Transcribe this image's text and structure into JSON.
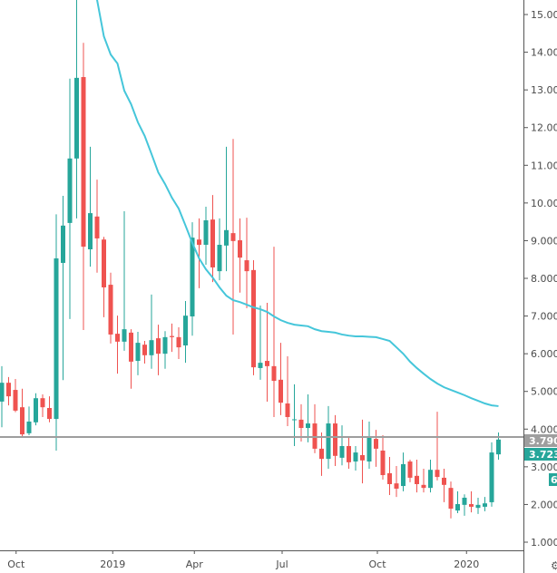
{
  "chart_data": {
    "type": "candlestick",
    "title": "",
    "xlabel": "",
    "ylabel": "",
    "ylim": [
      0.8,
      15.4
    ],
    "grid": false,
    "colors": {
      "up": "#26a69a",
      "down": "#ef5350",
      "ma": "#45c6da",
      "price_line": "#9e9e9e"
    },
    "y_ticks": [
      "1.000",
      "2.000",
      "3.000",
      "4.000",
      "5.000",
      "6.000",
      "7.000",
      "8.000",
      "9.000",
      "10.000",
      "11.000",
      "12.000",
      "13.000",
      "14.000",
      "15.000"
    ],
    "x_ticks": [
      {
        "label": "Oct",
        "at_candle": 2.1
      },
      {
        "label": "2019",
        "at_candle": 16.3
      },
      {
        "label": "Apr",
        "at_candle": 28.3
      },
      {
        "label": "Jul",
        "at_candle": 41.2
      },
      {
        "label": "Oct",
        "at_candle": 55.2
      },
      {
        "label": "2020",
        "at_candle": 68.3
      }
    ],
    "candles_ohlc": [
      [
        4.73,
        5.67,
        4.05,
        5.23
      ],
      [
        5.23,
        5.38,
        4.63,
        4.87
      ],
      [
        5.04,
        5.33,
        4.45,
        4.49
      ],
      [
        4.58,
        5.07,
        3.8,
        3.86
      ],
      [
        3.89,
        4.6,
        3.84,
        4.2
      ],
      [
        4.18,
        4.95,
        4.1,
        4.82
      ],
      [
        4.82,
        4.92,
        4.32,
        4.58
      ],
      [
        4.56,
        4.87,
        4.18,
        4.27
      ],
      [
        4.27,
        9.7,
        3.43,
        8.53
      ],
      [
        8.41,
        10.19,
        5.3,
        9.4
      ],
      [
        9.47,
        13.3,
        6.92,
        11.18
      ],
      [
        11.18,
        15.6,
        9.59,
        13.32
      ],
      [
        13.34,
        14.25,
        6.63,
        8.84
      ],
      [
        8.77,
        11.49,
        8.31,
        9.73
      ],
      [
        9.64,
        10.62,
        8.15,
        9.06
      ],
      [
        9.03,
        9.1,
        6.97,
        7.76
      ],
      [
        7.83,
        8.15,
        6.27,
        6.51
      ],
      [
        6.53,
        7.01,
        5.47,
        6.32
      ],
      [
        6.32,
        9.78,
        6.08,
        6.65
      ],
      [
        6.56,
        6.65,
        5.07,
        5.79
      ],
      [
        5.81,
        6.58,
        5.43,
        6.29
      ],
      [
        6.24,
        6.34,
        5.74,
        5.96
      ],
      [
        5.96,
        7.57,
        5.6,
        6.36
      ],
      [
        6.41,
        6.77,
        5.43,
        6.0
      ],
      [
        6.0,
        6.6,
        5.6,
        6.44
      ],
      [
        6.47,
        6.8,
        6.05,
        6.44
      ],
      [
        6.44,
        6.7,
        5.86,
        6.17
      ],
      [
        6.22,
        7.4,
        5.76,
        7.01
      ],
      [
        6.99,
        9.49,
        6.48,
        9.08
      ],
      [
        9.03,
        9.59,
        7.74,
        8.89
      ],
      [
        8.89,
        9.9,
        8.36,
        9.54
      ],
      [
        9.56,
        10.21,
        7.9,
        8.29
      ],
      [
        8.19,
        9.59,
        7.95,
        8.89
      ],
      [
        8.87,
        11.49,
        8.19,
        9.28
      ],
      [
        9.2,
        11.7,
        6.51,
        8.99
      ],
      [
        9.01,
        9.59,
        7.62,
        8.55
      ],
      [
        8.48,
        9.61,
        7.21,
        8.19
      ],
      [
        8.22,
        8.48,
        5.43,
        5.64
      ],
      [
        5.62,
        7.28,
        5.31,
        5.76
      ],
      [
        5.81,
        7.35,
        4.73,
        5.67
      ],
      [
        5.67,
        8.84,
        4.32,
        5.28
      ],
      [
        5.31,
        6.29,
        4.37,
        4.7
      ],
      [
        4.68,
        5.93,
        4.08,
        4.32
      ],
      [
        4.24,
        5.19,
        3.55,
        4.26
      ],
      [
        4.25,
        4.66,
        3.67,
        4.03
      ],
      [
        4.03,
        4.92,
        3.65,
        4.15
      ],
      [
        4.15,
        4.66,
        3.36,
        3.48
      ],
      [
        3.48,
        3.91,
        2.76,
        3.21
      ],
      [
        3.21,
        4.61,
        2.95,
        4.15
      ],
      [
        4.15,
        4.37,
        3.02,
        3.29
      ],
      [
        3.24,
        4.1,
        3.04,
        3.55
      ],
      [
        3.55,
        3.79,
        2.95,
        3.12
      ],
      [
        3.14,
        3.55,
        2.9,
        3.38
      ],
      [
        3.31,
        4.25,
        2.56,
        3.17
      ],
      [
        3.14,
        4.2,
        2.95,
        3.79
      ],
      [
        3.74,
        3.98,
        3.0,
        3.48
      ],
      [
        3.43,
        3.84,
        2.66,
        2.78
      ],
      [
        2.83,
        3.26,
        2.25,
        2.54
      ],
      [
        2.56,
        3.02,
        2.2,
        2.42
      ],
      [
        2.49,
        3.38,
        2.35,
        3.07
      ],
      [
        3.14,
        3.19,
        2.59,
        2.71
      ],
      [
        2.76,
        3.19,
        2.32,
        2.54
      ],
      [
        2.52,
        2.95,
        2.32,
        2.44
      ],
      [
        2.44,
        3.19,
        2.32,
        2.92
      ],
      [
        2.92,
        4.46,
        2.64,
        2.73
      ],
      [
        2.71,
        2.95,
        2.06,
        2.52
      ],
      [
        2.44,
        2.61,
        1.63,
        1.89
      ],
      [
        1.84,
        2.35,
        1.77,
        2.01
      ],
      [
        1.99,
        2.27,
        1.7,
        2.18
      ],
      [
        2.01,
        2.35,
        1.79,
        1.94
      ],
      [
        1.91,
        2.18,
        1.75,
        1.99
      ],
      [
        1.94,
        2.2,
        1.82,
        2.03
      ],
      [
        2.06,
        3.65,
        1.94,
        3.38
      ],
      [
        3.33,
        3.91,
        3.19,
        3.723
      ]
    ],
    "moving_average": [
      null,
      null,
      null,
      null,
      null,
      null,
      null,
      null,
      null,
      null,
      null,
      null,
      null,
      null,
      15.39,
      14.42,
      13.94,
      13.7,
      12.98,
      12.62,
      12.14,
      11.78,
      11.3,
      10.81,
      10.5,
      10.14,
      9.85,
      9.4,
      8.94,
      8.53,
      8.24,
      8.02,
      7.76,
      7.54,
      7.42,
      7.37,
      7.3,
      7.23,
      7.18,
      7.11,
      6.99,
      6.89,
      6.82,
      6.77,
      6.75,
      6.73,
      6.65,
      6.6,
      6.58,
      6.56,
      6.51,
      6.48,
      6.46,
      6.46,
      6.45,
      6.44,
      6.39,
      6.34,
      6.17,
      6.0,
      5.79,
      5.62,
      5.47,
      5.33,
      5.21,
      5.11,
      5.04,
      4.97,
      4.9,
      4.82,
      4.75,
      4.68,
      4.63,
      4.61
    ],
    "price_line": {
      "value": 3.79,
      "label": "3.790"
    },
    "last_price": {
      "value": 3.723,
      "label": "3.723"
    },
    "extra_tag": "6"
  },
  "icons": {
    "settings": "gear-icon"
  }
}
